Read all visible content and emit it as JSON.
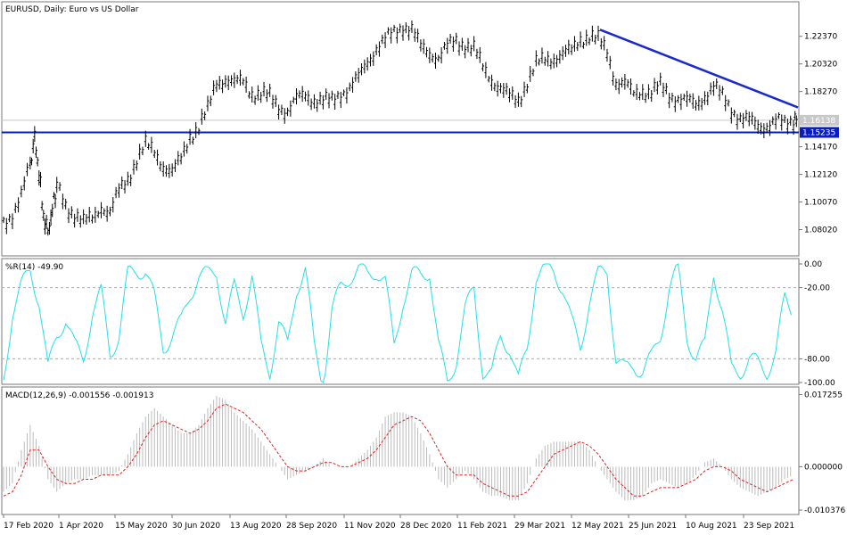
{
  "chart_data": [
    {
      "type": "line",
      "panel": "price",
      "title": "EURUSD, Daily:  Euro vs US Dollar",
      "ylim": [
        1.062,
        1.248
      ],
      "y_ticks": [
        "1.22370",
        "1.20320",
        "1.18270",
        "1.14170",
        "1.12120",
        "1.10070",
        "1.08020"
      ],
      "y_tick_values": [
        1.2237,
        1.2032,
        1.1827,
        1.1417,
        1.1212,
        1.1007,
        1.0802
      ],
      "price_label": "1.16138",
      "price_value": 1.16138,
      "level_label": "1.15235",
      "level_value": 1.15235,
      "series": [
        {
          "x": [
            0,
            10,
            20,
            30,
            35,
            40,
            45,
            50,
            55,
            60,
            70,
            80,
            90,
            100,
            110,
            120,
            130,
            140,
            150,
            160,
            170,
            180,
            190,
            200,
            210,
            220,
            230,
            240,
            250,
            260,
            270,
            280,
            290,
            300,
            310,
            320,
            330,
            340,
            350,
            360,
            370,
            380,
            390,
            400,
            410,
            420,
            430,
            440,
            450,
            460,
            470,
            480,
            490,
            500,
            510,
            520,
            530,
            540,
            550,
            560,
            570,
            580,
            590,
            600,
            610,
            620,
            630,
            640,
            650,
            660,
            670,
            680,
            690,
            700,
            710,
            720,
            730,
            740,
            750,
            760,
            770,
            780,
            790,
            800,
            810,
            820,
            830,
            840,
            850,
            860,
            870,
            880,
            890,
            895
          ],
          "y": [
            1.085,
            1.092,
            1.105,
            1.128,
            1.148,
            1.122,
            1.09,
            1.078,
            1.095,
            1.112,
            1.098,
            1.092,
            1.085,
            1.088,
            1.098,
            1.092,
            1.108,
            1.118,
            1.132,
            1.142,
            1.138,
            1.128,
            1.122,
            1.132,
            1.15,
            1.156,
            1.168,
            1.19,
            1.192,
            1.188,
            1.19,
            1.182,
            1.18,
            1.178,
            1.172,
            1.168,
            1.176,
            1.18,
            1.177,
            1.175,
            1.175,
            1.182,
            1.185,
            1.192,
            1.205,
            1.215,
            1.22,
            1.226,
            1.232,
            1.228,
            1.215,
            1.212,
            1.208,
            1.215,
            1.22,
            1.218,
            1.214,
            1.2,
            1.192,
            1.185,
            1.178,
            1.176,
            1.19,
            1.202,
            1.206,
            1.208,
            1.21,
            1.212,
            1.222,
            1.224,
            1.22,
            1.212,
            1.19,
            1.188,
            1.18,
            1.184,
            1.182,
            1.186,
            1.18,
            1.178,
            1.175,
            1.172,
            1.18,
            1.186,
            1.178,
            1.17,
            1.163,
            1.16,
            1.157,
            1.158,
            1.16,
            1.158,
            1.162,
            1.16138
          ]
        }
      ],
      "annotations": [
        {
          "type": "trendline",
          "x": [
            672,
            895
          ],
          "y": [
            1.2286,
            1.1709
          ]
        }
      ]
    },
    {
      "type": "line",
      "panel": "williams-r",
      "title": "%R(14) -49.90",
      "ylim": [
        -100,
        0
      ],
      "y_ticks": [
        "0.00",
        "-20.00",
        "-80.00",
        "-100.00"
      ],
      "y_tick_values": [
        0,
        -20,
        -80,
        -100
      ],
      "levels": [
        -20,
        -80
      ],
      "series": [
        {
          "x": [
            0,
            10,
            20,
            30,
            40,
            50,
            60,
            70,
            80,
            90,
            100,
            110,
            120,
            130,
            140,
            150,
            160,
            170,
            180,
            190,
            200,
            210,
            220,
            230,
            240,
            250,
            260,
            270,
            280,
            290,
            300,
            310,
            320,
            330,
            340,
            350,
            360,
            370,
            380,
            390,
            400,
            410,
            420,
            430,
            440,
            450,
            460,
            470,
            480,
            490,
            500,
            510,
            520,
            530,
            540,
            550,
            560,
            570,
            580,
            590,
            600,
            610,
            620,
            630,
            640,
            650,
            660,
            670,
            680,
            690,
            700,
            710,
            720,
            730,
            740,
            750,
            760,
            770,
            780,
            790,
            800,
            810,
            820,
            830,
            840,
            850,
            860,
            870,
            880,
            890
          ],
          "y": [
            -98,
            -40,
            -20,
            -5,
            -30,
            -90,
            -60,
            -45,
            -70,
            -80,
            -40,
            -25,
            -75,
            -60,
            -10,
            -5,
            -5,
            -30,
            -70,
            -60,
            -50,
            -25,
            -10,
            -10,
            -5,
            -50,
            -20,
            -40,
            -10,
            -70,
            -90,
            -50,
            -70,
            -20,
            -5,
            -70,
            -100,
            -40,
            -20,
            -10,
            -5,
            -10,
            -5,
            -15,
            -70,
            -30,
            -10,
            -10,
            -5,
            -70,
            -100,
            -80,
            -40,
            -20,
            -90,
            -95,
            -60,
            -70,
            -100,
            -70,
            -10,
            -5,
            -5,
            -20,
            -50,
            -70,
            -30,
            -10,
            -5,
            -80,
            -90,
            -85,
            -90,
            -80,
            -60,
            -20,
            -5,
            -60,
            -80,
            -70,
            -5,
            -40,
            -90,
            -90,
            -80,
            -85,
            -90,
            -75,
            -30,
            -40
          ]
        }
      ]
    },
    {
      "type": "bar",
      "panel": "macd",
      "title": "MACD(12,26,9) -0.001556 -0.001913",
      "ylim": [
        -0.011,
        0.0178
      ],
      "y_ticks": [
        "0.017255",
        "0.000000",
        "-0.010376"
      ],
      "y_tick_values": [
        0.017255,
        0,
        -0.010376
      ],
      "series": [
        {
          "name": "MACD",
          "x": [
            0,
            10,
            20,
            30,
            40,
            50,
            60,
            70,
            80,
            90,
            100,
            110,
            120,
            130,
            140,
            150,
            160,
            170,
            180,
            190,
            200,
            210,
            220,
            230,
            240,
            250,
            260,
            270,
            280,
            290,
            300,
            310,
            320,
            330,
            340,
            350,
            360,
            370,
            380,
            390,
            400,
            410,
            420,
            430,
            440,
            450,
            460,
            470,
            480,
            490,
            500,
            510,
            520,
            530,
            540,
            550,
            560,
            570,
            580,
            590,
            600,
            610,
            620,
            630,
            640,
            650,
            660,
            670,
            680,
            690,
            700,
            710,
            720,
            730,
            740,
            750,
            760,
            770,
            780,
            790,
            800,
            810,
            820,
            830,
            840,
            850,
            860,
            870,
            880,
            890
          ],
          "y": [
            -0.006,
            -0.004,
            0.004,
            0.01,
            0.005,
            -0.003,
            -0.006,
            -0.004,
            -0.003,
            -0.003,
            -0.002,
            -0.002,
            -0.002,
            -0.001,
            0.003,
            0.008,
            0.012,
            0.014,
            0.012,
            0.01,
            0.008,
            0.008,
            0.01,
            0.014,
            0.017,
            0.016,
            0.013,
            0.011,
            0.009,
            0.006,
            0.003,
            0.0,
            -0.003,
            -0.002,
            -0.001,
            0.0,
            0.002,
            0.0,
            0.0,
            0.0,
            0.002,
            0.004,
            0.007,
            0.012,
            0.013,
            0.013,
            0.012,
            0.008,
            0.003,
            -0.003,
            -0.005,
            -0.003,
            -0.001,
            -0.003,
            -0.006,
            -0.007,
            -0.007,
            -0.008,
            -0.008,
            -0.004,
            0.002,
            0.005,
            0.006,
            0.006,
            0.006,
            0.006,
            0.004,
            0.0,
            -0.003,
            -0.006,
            -0.008,
            -0.008,
            -0.007,
            -0.004,
            -0.003,
            -0.004,
            -0.005,
            -0.004,
            -0.002,
            0.001,
            0.002,
            0.0,
            -0.003,
            -0.005,
            -0.006,
            -0.007,
            -0.006,
            -0.005,
            -0.003,
            -0.002
          ]
        },
        {
          "name": "Signal",
          "x": [
            0,
            10,
            20,
            30,
            40,
            50,
            60,
            70,
            80,
            90,
            100,
            110,
            120,
            130,
            140,
            150,
            160,
            170,
            180,
            190,
            200,
            210,
            220,
            230,
            240,
            250,
            260,
            270,
            280,
            290,
            300,
            310,
            320,
            330,
            340,
            350,
            360,
            370,
            380,
            390,
            400,
            410,
            420,
            430,
            440,
            450,
            460,
            470,
            480,
            490,
            500,
            510,
            520,
            530,
            540,
            550,
            560,
            570,
            580,
            590,
            600,
            610,
            620,
            630,
            640,
            650,
            660,
            670,
            680,
            690,
            700,
            710,
            720,
            730,
            740,
            750,
            760,
            770,
            780,
            790,
            800,
            810,
            820,
            830,
            840,
            850,
            860,
            870,
            880,
            890
          ],
          "y": [
            -0.007,
            -0.006,
            -0.002,
            0.004,
            0.004,
            0.0,
            -0.003,
            -0.004,
            -0.004,
            -0.003,
            -0.003,
            -0.002,
            -0.002,
            -0.002,
            0.0,
            0.003,
            0.007,
            0.01,
            0.011,
            0.01,
            0.009,
            0.008,
            0.009,
            0.011,
            0.014,
            0.015,
            0.014,
            0.013,
            0.011,
            0.009,
            0.006,
            0.003,
            0.0,
            -0.001,
            -0.001,
            0.0,
            0.001,
            0.001,
            0.0,
            0.0,
            0.001,
            0.002,
            0.004,
            0.007,
            0.01,
            0.011,
            0.012,
            0.011,
            0.008,
            0.004,
            0.0,
            -0.002,
            -0.002,
            -0.002,
            -0.004,
            -0.005,
            -0.006,
            -0.007,
            -0.007,
            -0.006,
            -0.003,
            0.0,
            0.003,
            0.004,
            0.005,
            0.006,
            0.005,
            0.003,
            0.0,
            -0.003,
            -0.005,
            -0.007,
            -0.007,
            -0.006,
            -0.005,
            -0.005,
            -0.005,
            -0.004,
            -0.003,
            -0.001,
            0.0,
            0.0,
            -0.001,
            -0.003,
            -0.004,
            -0.005,
            -0.006,
            -0.005,
            -0.004,
            -0.003
          ]
        }
      ]
    }
  ],
  "colors": {
    "price": "#000000",
    "trendline": "#1a2acc",
    "level": "#0a1ebe",
    "level_box": "#0a1ebe",
    "price_box": "#c8c8c8",
    "wpr": "#22dfe8",
    "wpr_level": "#aaaaaa",
    "macd_bar": "#bbbbbb",
    "signal": "#e02020",
    "frame": "#777777"
  },
  "x_axis": {
    "labels": [
      "17 Feb 2020",
      "1 Apr 2020",
      "15 May 2020",
      "30 Jun 2020",
      "13 Aug 2020",
      "28 Sep 2020",
      "11 Nov 2020",
      "28 Dec 2020",
      "11 Feb 2021",
      "29 Mar 2021",
      "12 May 2021",
      "25 Jun 2021",
      "10 Aug 2021",
      "23 Sep 2021"
    ],
    "positions": [
      4,
      66,
      129,
      193,
      258,
      321,
      386,
      449,
      513,
      577,
      641,
      705,
      769,
      834
    ]
  }
}
